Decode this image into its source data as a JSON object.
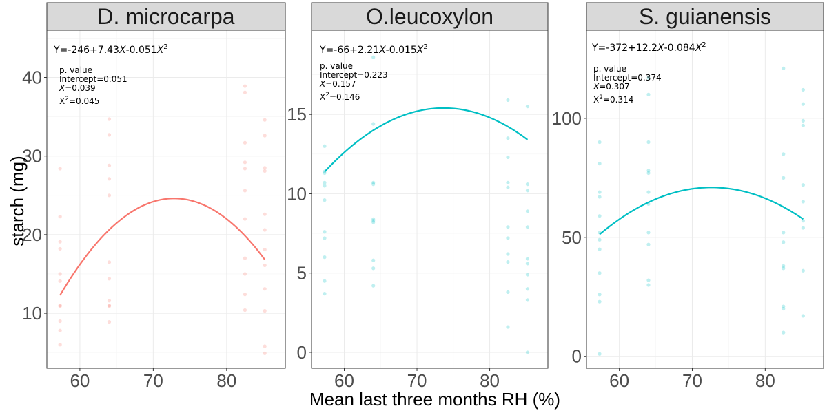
{
  "chart_data": {
    "type": "scatter",
    "xlabel": "Mean last three months RH (%)",
    "ylabel": "starch (mg)",
    "grid": true,
    "xlim": [
      55.5,
      88
    ],
    "xticks": [
      60,
      70,
      80
    ],
    "panels": [
      {
        "title": "D. microcarpa",
        "color": "#F8766D",
        "ylim": [
          3,
          46
        ],
        "yticks": [
          10,
          20,
          30,
          40
        ],
        "coefficients": {
          "intercept": -246,
          "x": 7.43,
          "x2": -0.051
        },
        "equation": {
          "prefix": "Y=-246+7.43",
          "x": "X",
          "mid": "-0.051",
          "x2": "X",
          "sup": "2"
        },
        "annotation": {
          "heading": "p. value",
          "intercept": "Intercept=0.051",
          "x_label": "X",
          "x_value": "=0.039",
          "x2_base": "X",
          "x2_sup": "2",
          "x2_value": "=0.045"
        },
        "points": [
          [
            57.3,
            28.4
          ],
          [
            57.3,
            22.3
          ],
          [
            57.3,
            19.1
          ],
          [
            57.3,
            18.2
          ],
          [
            57.3,
            15.0
          ],
          [
            57.3,
            14.1
          ],
          [
            57.3,
            11.0
          ],
          [
            57.3,
            10.9
          ],
          [
            57.3,
            9.0
          ],
          [
            57.3,
            7.8
          ],
          [
            57.3,
            6.0
          ],
          [
            64.0,
            34.7
          ],
          [
            64.0,
            32.7
          ],
          [
            64.0,
            28.8
          ],
          [
            64.0,
            27.1
          ],
          [
            64.0,
            25.0
          ],
          [
            64.0,
            16.5
          ],
          [
            64.0,
            14.4
          ],
          [
            64.0,
            11.6
          ],
          [
            64.0,
            11.0
          ],
          [
            64.0,
            10.9
          ],
          [
            64.0,
            8.9
          ],
          [
            82.5,
            38.9
          ],
          [
            82.5,
            38.1
          ],
          [
            82.5,
            31.7
          ],
          [
            82.5,
            29.2
          ],
          [
            82.5,
            28.4
          ],
          [
            82.5,
            25.6
          ],
          [
            82.5,
            22.0
          ],
          [
            82.5,
            17.0
          ],
          [
            82.5,
            15.0
          ],
          [
            82.5,
            12.4
          ],
          [
            82.5,
            10.4
          ],
          [
            85.2,
            34.6
          ],
          [
            85.2,
            32.6
          ],
          [
            85.2,
            28.5
          ],
          [
            85.2,
            28.1
          ],
          [
            85.2,
            22.6
          ],
          [
            85.2,
            20.6
          ],
          [
            85.2,
            18.1
          ],
          [
            85.2,
            16.1
          ],
          [
            85.2,
            13.1
          ],
          [
            85.2,
            10.3
          ],
          [
            85.2,
            5.8
          ],
          [
            85.2,
            4.9
          ]
        ]
      },
      {
        "title": "O.leucoxylon",
        "color": "#00BFC4",
        "ylim": [
          -1,
          20.3
        ],
        "yticks": [
          0,
          5,
          10,
          15
        ],
        "coefficients": {
          "intercept": -66,
          "x": 2.21,
          "x2": -0.015
        },
        "equation": {
          "prefix": "Y=-66+2.21",
          "x": "X",
          "mid": "-0.015",
          "x2": "X",
          "sup": "2"
        },
        "annotation": {
          "heading": "p. value",
          "intercept": "Intercept=0.223",
          "x_label": "X",
          "x_value": "=0.157",
          "x2_base": "X",
          "x2_sup": "2",
          "x2_value": "=0.146"
        },
        "points": [
          [
            57.3,
            13.0
          ],
          [
            57.3,
            11.4
          ],
          [
            57.3,
            11.3
          ],
          [
            57.3,
            10.7
          ],
          [
            57.3,
            10.5
          ],
          [
            57.3,
            9.6
          ],
          [
            57.3,
            7.6
          ],
          [
            57.3,
            7.2
          ],
          [
            57.3,
            6.0
          ],
          [
            57.3,
            4.5
          ],
          [
            57.3,
            3.7
          ],
          [
            64.0,
            18.6
          ],
          [
            64.0,
            14.4
          ],
          [
            64.0,
            10.7
          ],
          [
            64.0,
            10.6
          ],
          [
            64.0,
            8.4
          ],
          [
            64.0,
            8.3
          ],
          [
            64.0,
            8.2
          ],
          [
            64.0,
            5.8
          ],
          [
            64.0,
            5.3
          ],
          [
            64.0,
            4.2
          ],
          [
            82.5,
            15.9
          ],
          [
            82.5,
            13.5
          ],
          [
            82.5,
            12.3
          ],
          [
            82.5,
            10.7
          ],
          [
            82.5,
            10.4
          ],
          [
            82.5,
            7.9
          ],
          [
            82.5,
            7.2
          ],
          [
            82.5,
            6.2
          ],
          [
            82.5,
            5.7
          ],
          [
            82.5,
            3.8
          ],
          [
            82.5,
            1.6
          ],
          [
            85.2,
            15.5
          ],
          [
            85.2,
            10.6
          ],
          [
            85.2,
            10.2
          ],
          [
            85.2,
            8.9
          ],
          [
            85.2,
            7.9
          ],
          [
            85.2,
            5.9
          ],
          [
            85.2,
            5.6
          ],
          [
            85.2,
            4.9
          ],
          [
            85.2,
            4.0
          ],
          [
            85.2,
            3.3
          ],
          [
            85.2,
            0.0
          ]
        ]
      },
      {
        "title": "S. guianensis",
        "color": "#00BFC4",
        "ylim": [
          -5,
          137
        ],
        "yticks": [
          0,
          50,
          100
        ],
        "coefficients": {
          "intercept": -372,
          "x": 12.2,
          "x2": -0.084
        },
        "equation": {
          "prefix": "Y=-372+12.2",
          "x": "X",
          "mid": "-0.084",
          "x2": "X",
          "sup": "2"
        },
        "annotation": {
          "heading": "p. value",
          "intercept": "Intercept=0.374",
          "x_label": "X",
          "x_value": "=0.307",
          "x2_base": "X",
          "x2_sup": "2",
          "x2_value": "=0.314"
        },
        "points": [
          [
            57.3,
            90
          ],
          [
            57.3,
            81
          ],
          [
            57.3,
            69
          ],
          [
            57.3,
            67
          ],
          [
            57.3,
            59
          ],
          [
            57.3,
            52
          ],
          [
            57.3,
            49
          ],
          [
            57.3,
            45
          ],
          [
            57.3,
            35
          ],
          [
            57.3,
            26
          ],
          [
            57.3,
            23
          ],
          [
            57.3,
            1
          ],
          [
            64.0,
            117
          ],
          [
            64.0,
            110
          ],
          [
            64.0,
            90
          ],
          [
            64.0,
            78
          ],
          [
            64.0,
            77
          ],
          [
            64.0,
            69
          ],
          [
            64.0,
            64
          ],
          [
            64.0,
            52
          ],
          [
            64.0,
            47
          ],
          [
            64.0,
            32
          ],
          [
            64.0,
            30
          ],
          [
            82.5,
            121
          ],
          [
            82.5,
            85
          ],
          [
            82.5,
            75
          ],
          [
            82.5,
            52
          ],
          [
            82.5,
            48
          ],
          [
            82.5,
            38
          ],
          [
            82.5,
            37
          ],
          [
            82.5,
            21
          ],
          [
            82.5,
            20
          ],
          [
            82.5,
            10
          ],
          [
            85.2,
            112
          ],
          [
            85.2,
            106
          ],
          [
            85.2,
            99
          ],
          [
            85.2,
            97
          ],
          [
            85.2,
            72
          ],
          [
            85.2,
            65
          ],
          [
            85.2,
            57
          ],
          [
            85.2,
            54
          ],
          [
            85.2,
            36
          ],
          [
            85.2,
            17
          ]
        ]
      }
    ]
  }
}
